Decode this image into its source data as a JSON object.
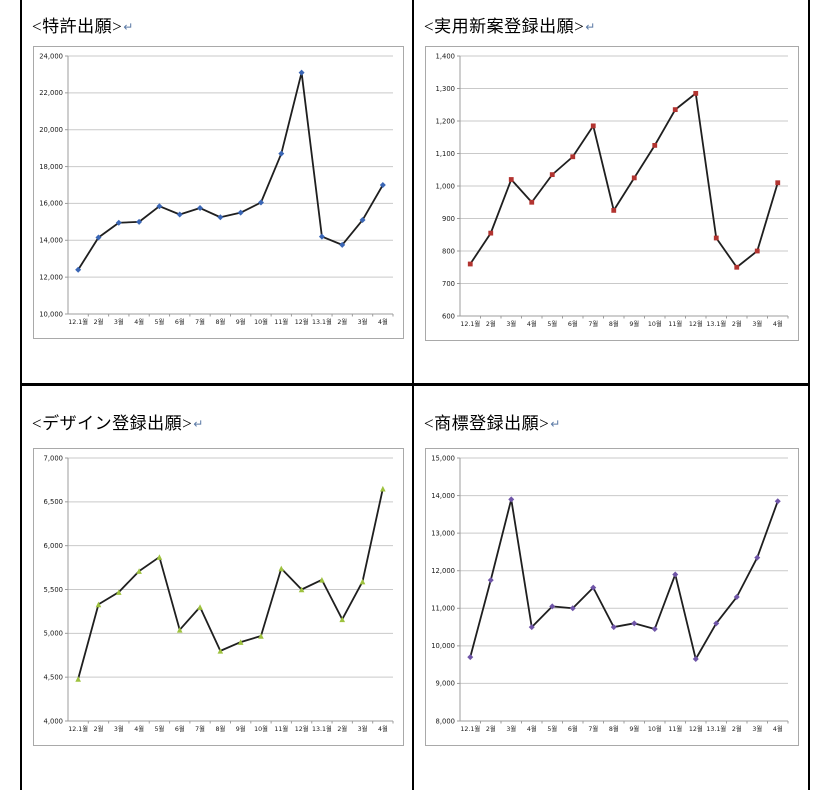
{
  "marks": {
    "return": "↵"
  },
  "panels": [
    {
      "heading": "<特許出願>"
    },
    {
      "heading": "<実用新案登録出願>"
    },
    {
      "heading": "<デザイン登録出願>"
    },
    {
      "heading": "<商標登録出願>"
    }
  ],
  "styles": {
    "grid_color": "#c9c9c9",
    "axis_color": "#9c9c9c",
    "tick_color": "#1a1a1a",
    "line_color": "#1f1f1f",
    "frame_border": "#a9a9a9",
    "table_border": "#000000"
  },
  "chart_data": [
    {
      "type": "line",
      "title": "特許出願",
      "categories": [
        "12.1월",
        "2월",
        "3월",
        "4월",
        "5월",
        "6월",
        "7월",
        "8월",
        "9월",
        "10월",
        "11월",
        "12월",
        "13.1월",
        "2월",
        "3월",
        "4월"
      ],
      "values": [
        12400,
        14150,
        14950,
        15000,
        15850,
        15400,
        15750,
        15250,
        15500,
        16050,
        18700,
        23100,
        14200,
        13750,
        15100,
        17000
      ],
      "ylim": [
        10000,
        24000
      ],
      "ytick_step": 2000,
      "grid": true,
      "legend": "none",
      "marker": {
        "shape": "diamond",
        "color": "#3a66b5"
      }
    },
    {
      "type": "line",
      "title": "実用新案登録出願",
      "categories": [
        "12.1월",
        "2월",
        "3월",
        "4월",
        "5월",
        "6월",
        "7월",
        "8월",
        "9월",
        "10월",
        "11월",
        "12월",
        "13.1월",
        "2월",
        "3월",
        "4월"
      ],
      "values": [
        760,
        855,
        1020,
        950,
        1035,
        1090,
        1185,
        925,
        1025,
        1125,
        1235,
        1285,
        840,
        750,
        800,
        1010
      ],
      "ylim": [
        600,
        1400
      ],
      "ytick_step": 100,
      "grid": true,
      "legend": "none",
      "marker": {
        "shape": "square",
        "color": "#b23430"
      }
    },
    {
      "type": "line",
      "title": "デザイン登録出願",
      "categories": [
        "12.1월",
        "2월",
        "3월",
        "4월",
        "5월",
        "6월",
        "7월",
        "8월",
        "9월",
        "10월",
        "11월",
        "12월",
        "13.1월",
        "2월",
        "3월",
        "4월"
      ],
      "values": [
        4480,
        5330,
        5470,
        5710,
        5870,
        5040,
        5300,
        4800,
        4900,
        4970,
        5740,
        5500,
        5610,
        5160,
        5590,
        6650
      ],
      "ylim": [
        4000,
        7000
      ],
      "ytick_step": 500,
      "grid": true,
      "legend": "none",
      "marker": {
        "shape": "triangle",
        "color": "#9ec23e"
      }
    },
    {
      "type": "line",
      "title": "商標登録出願",
      "categories": [
        "12.1월",
        "2월",
        "3월",
        "4월",
        "5월",
        "6월",
        "7월",
        "8월",
        "9월",
        "10월",
        "11월",
        "12월",
        "13.1월",
        "2월",
        "3월",
        "4월"
      ],
      "values": [
        9700,
        11750,
        13900,
        10500,
        11050,
        11000,
        11550,
        10500,
        10600,
        10450,
        11900,
        9650,
        10600,
        11300,
        12350,
        13850
      ],
      "ylim": [
        8000,
        15000
      ],
      "ytick_step": 1000,
      "grid": true,
      "legend": "none",
      "marker": {
        "shape": "diamond",
        "color": "#6f55a8"
      }
    }
  ]
}
